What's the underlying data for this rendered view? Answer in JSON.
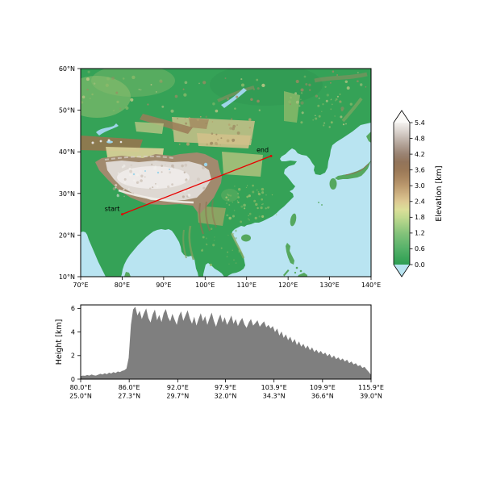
{
  "figure": {
    "background": "#ffffff"
  },
  "chart_data": [
    {
      "type": "heatmap",
      "name": "elevation-map",
      "title": "",
      "lon_range": [
        70,
        140
      ],
      "lat_range": [
        10,
        60
      ],
      "x_ticks": [
        "70°E",
        "80°E",
        "90°E",
        "100°E",
        "110°E",
        "120°E",
        "130°E",
        "140°E"
      ],
      "y_ticks": [
        "10°N",
        "20°N",
        "30°N",
        "40°N",
        "50°N",
        "60°N"
      ],
      "ocean_color": "#b9e4f1",
      "land_color": "#35a257",
      "transect": {
        "start": {
          "lon": 80.0,
          "lat": 25.0,
          "label": "start"
        },
        "end": {
          "lon": 115.9,
          "lat": 39.0,
          "label": "end"
        },
        "color": "#e80000"
      },
      "colorbar": {
        "label": "Elevation [km]",
        "ticks": [
          "0.0",
          "0.6",
          "1.2",
          "1.8",
          "2.4",
          "3.0",
          "3.6",
          "4.2",
          "4.8",
          "5.4"
        ],
        "vmin": 0.0,
        "vmax": 5.4,
        "under": "#b9e4f1",
        "over": "#fbfaf8",
        "stops": [
          {
            "v": 0.0,
            "c": "#2e9e54"
          },
          {
            "v": 0.3,
            "c": "#3fa75c"
          },
          {
            "v": 0.6,
            "c": "#55b169"
          },
          {
            "v": 0.9,
            "c": "#6cba72"
          },
          {
            "v": 1.2,
            "c": "#85c37b"
          },
          {
            "v": 1.5,
            "c": "#a3cf85"
          },
          {
            "v": 1.8,
            "c": "#c2da8f"
          },
          {
            "v": 2.1,
            "c": "#dcdf99"
          },
          {
            "v": 2.4,
            "c": "#ddc992"
          },
          {
            "v": 2.7,
            "c": "#cdb080"
          },
          {
            "v": 3.0,
            "c": "#bb9a6e"
          },
          {
            "v": 3.3,
            "c": "#a98660"
          },
          {
            "v": 3.6,
            "c": "#9a7857"
          },
          {
            "v": 3.9,
            "c": "#92745a"
          },
          {
            "v": 4.2,
            "c": "#9a8372"
          },
          {
            "v": 4.5,
            "c": "#ad9c90"
          },
          {
            "v": 4.8,
            "c": "#c4b9b1"
          },
          {
            "v": 5.1,
            "c": "#ddd6d1"
          },
          {
            "v": 5.4,
            "c": "#f3f1ee"
          }
        ]
      }
    },
    {
      "type": "area",
      "name": "height-profile",
      "ylabel": "Height [km]",
      "ylim": [
        0,
        6.3
      ],
      "y_ticks": [
        "0",
        "2",
        "4",
        "6"
      ],
      "x_tick_labels_line1": [
        "80.0°E",
        "86.0°E",
        "92.0°E",
        "97.9°E",
        "103.9°E",
        "109.9°E",
        "115.9°E"
      ],
      "x_tick_labels_line2": [
        "25.0°N",
        "27.3°N",
        "29.7°N",
        "32.0°N",
        "34.3°N",
        "36.6°N",
        "39.0°N"
      ],
      "x_start_lon": 80.0,
      "x_end_lon": 115.9,
      "fill_color": "#7f7f7f",
      "values": [
        0.25,
        0.3,
        0.28,
        0.35,
        0.3,
        0.4,
        0.33,
        0.3,
        0.38,
        0.45,
        0.4,
        0.5,
        0.42,
        0.55,
        0.48,
        0.6,
        0.52,
        0.65,
        0.6,
        0.7,
        0.75,
        0.9,
        1.8,
        4.6,
        5.9,
        6.15,
        5.4,
        5.8,
        5.1,
        5.6,
        6.0,
        5.2,
        4.8,
        5.5,
        5.9,
        5.0,
        5.45,
        4.85,
        5.6,
        5.95,
        5.25,
        4.9,
        5.55,
        5.05,
        4.6,
        5.35,
        5.75,
        4.95,
        5.4,
        5.85,
        5.15,
        4.7,
        5.3,
        4.55,
        5.1,
        5.6,
        4.9,
        5.35,
        4.6,
        5.15,
        5.65,
        4.95,
        4.45,
        5.05,
        5.5,
        4.8,
        5.25,
        4.6,
        4.95,
        5.4,
        4.7,
        5.1,
        4.5,
        4.9,
        5.2,
        4.65,
        4.35,
        4.8,
        5.1,
        4.55,
        4.75,
        5.0,
        4.45,
        4.7,
        4.9,
        4.4,
        4.6,
        4.3,
        4.5,
        4.0,
        4.3,
        3.7,
        4.05,
        3.5,
        3.8,
        3.3,
        3.6,
        3.1,
        3.4,
        2.9,
        3.2,
        2.75,
        3.0,
        2.6,
        2.85,
        2.45,
        2.7,
        2.3,
        2.5,
        2.2,
        2.4,
        2.1,
        2.25,
        1.95,
        2.15,
        1.8,
        2.0,
        1.7,
        1.85,
        1.6,
        1.75,
        1.5,
        1.65,
        1.35,
        1.5,
        1.25,
        1.35,
        1.1,
        1.2,
        0.95,
        1.05,
        0.8,
        0.6,
        0.35
      ]
    }
  ]
}
